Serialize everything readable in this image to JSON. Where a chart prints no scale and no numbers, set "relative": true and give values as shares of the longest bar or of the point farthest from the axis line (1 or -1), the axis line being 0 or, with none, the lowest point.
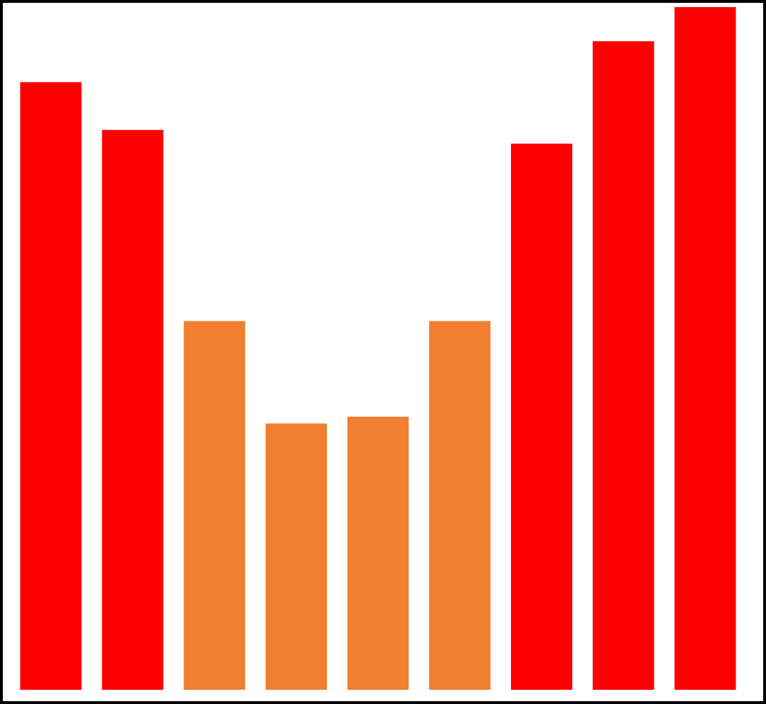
{
  "chart_data": {
    "type": "bar",
    "relative": true,
    "categories": [
      null,
      null,
      null,
      null,
      null,
      null,
      null,
      null,
      null
    ],
    "values": [
      0.89,
      0.82,
      0.54,
      0.39,
      0.4,
      0.54,
      0.8,
      0.95,
      1
    ],
    "colors": [
      "#ff0000",
      "#ff0000",
      "#f08030",
      "#f08030",
      "#f08030",
      "#f08030",
      "#ff0000",
      "#ff0000",
      "#ff0000"
    ]
  }
}
